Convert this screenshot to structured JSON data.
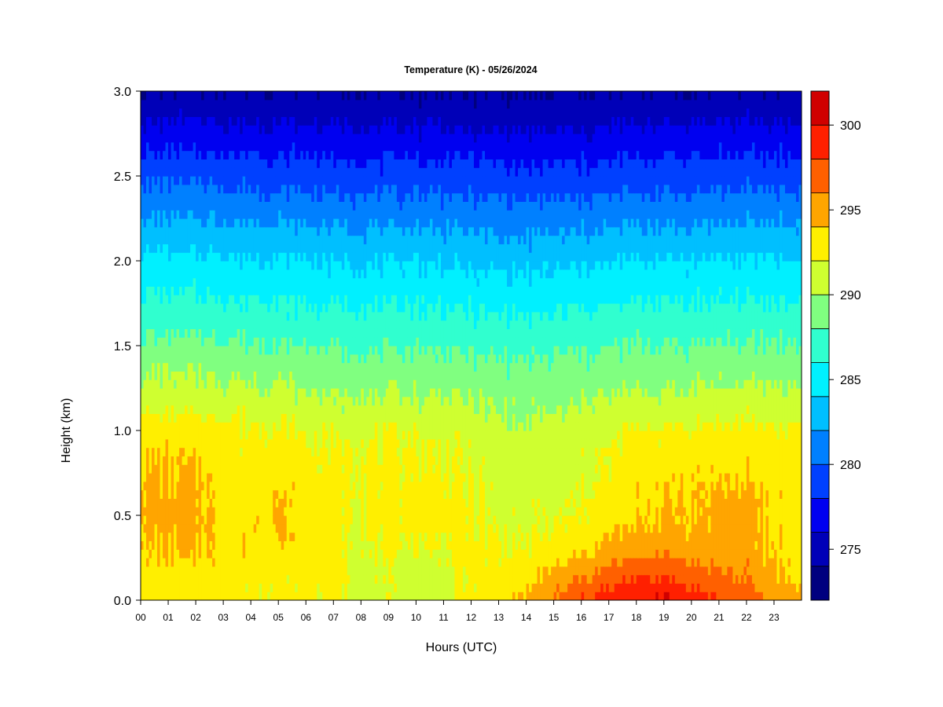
{
  "chart_data": {
    "type": "heatmap",
    "title": "Temperature (K) - 05/26/2024",
    "xlabel": "Hours (UTC)",
    "ylabel": "Height (km)",
    "x_unit": "hours UTC",
    "y_unit": "km",
    "xlim": [
      0,
      24
    ],
    "ylim": [
      0,
      3
    ],
    "x_ticks": [
      0,
      1,
      2,
      3,
      4,
      5,
      6,
      7,
      8,
      9,
      10,
      11,
      12,
      13,
      14,
      15,
      16,
      17,
      18,
      19,
      20,
      21,
      22,
      23
    ],
    "x_tick_labels": [
      "00",
      "01",
      "02",
      "03",
      "04",
      "05",
      "06",
      "07",
      "08",
      "09",
      "10",
      "11",
      "12",
      "13",
      "14",
      "15",
      "16",
      "17",
      "18",
      "19",
      "20",
      "21",
      "22",
      "23"
    ],
    "y_ticks": [
      0,
      0.5,
      1,
      1.5,
      2,
      2.5,
      3
    ],
    "y_tick_labels": [
      "0.0",
      "0.5",
      "1.0",
      "1.5",
      "2.0",
      "2.5",
      "3.0"
    ],
    "grid": false,
    "legend": "right colorbar",
    "colorbar": {
      "range": [
        272,
        302
      ],
      "levels": [
        272,
        274,
        276,
        278,
        280,
        282,
        284,
        286,
        288,
        290,
        292,
        294,
        296,
        298,
        300,
        302
      ],
      "colors": [
        "#00007F",
        "#0000B8",
        "#0000F0",
        "#0040FF",
        "#0080FF",
        "#00BFFF",
        "#00F0FF",
        "#30FFCF",
        "#80FF80",
        "#CFFF30",
        "#FFEF00",
        "#FFA500",
        "#FF6000",
        "#FF2000",
        "#D00000",
        "#800000"
      ],
      "tick_values": [
        275,
        280,
        285,
        290,
        295,
        300
      ],
      "tick_labels": [
        "275",
        "280",
        "285",
        "290",
        "295",
        "300"
      ]
    },
    "profiles": {
      "heights_km": [
        0,
        0.1,
        0.2,
        0.3,
        0.4,
        0.5,
        0.6,
        0.7,
        0.8,
        0.9,
        1.0,
        1.1,
        1.2,
        1.3,
        1.4,
        1.5,
        1.6,
        1.7,
        1.8,
        1.9,
        2.0,
        2.1,
        2.2,
        2.3,
        2.4,
        2.5,
        2.6,
        2.7,
        2.8,
        2.9,
        3.0
      ],
      "hours": [
        0,
        2,
        3.5,
        5,
        6,
        7,
        8,
        9,
        9.6,
        10.2,
        11,
        12,
        13,
        14,
        15,
        16,
        17,
        18,
        19,
        20,
        21,
        22,
        23,
        24
      ],
      "values_k": [
        [
          293.0,
          293.0,
          293.5,
          294.0,
          294.2,
          294.5,
          294.5,
          294.3,
          294.0,
          293.5,
          293.0,
          292.0,
          291.0,
          290.2,
          289.5,
          288.5,
          287.6,
          286.8,
          286.0,
          285.2,
          284.5,
          283.5,
          282.5,
          281.5,
          280.5,
          279.5,
          278.5,
          277.5,
          276.3,
          275.2,
          274.2
        ],
        [
          293.0,
          293.0,
          293.5,
          294.0,
          294.2,
          294.5,
          294.5,
          294.3,
          294.0,
          293.5,
          293.0,
          292.0,
          291.0,
          290.2,
          289.5,
          288.5,
          287.6,
          286.8,
          286.0,
          285.2,
          284.5,
          283.5,
          282.5,
          281.5,
          280.5,
          279.5,
          278.5,
          277.5,
          276.3,
          275.2,
          274.2
        ],
        [
          292.5,
          292.5,
          293.0,
          293.5,
          293.5,
          293.2,
          293.0,
          293.0,
          292.5,
          292.5,
          292.5,
          291.8,
          290.8,
          290.0,
          289.2,
          288.3,
          287.5,
          286.6,
          285.8,
          285.0,
          284.3,
          283.3,
          282.3,
          281.3,
          280.3,
          279.3,
          278.3,
          277.3,
          276.2,
          275.2,
          274.2
        ],
        [
          292.5,
          292.5,
          293.0,
          293.5,
          294.0,
          294.2,
          294.0,
          293.6,
          293.0,
          292.6,
          292.2,
          291.5,
          290.6,
          289.8,
          289.0,
          288.2,
          287.4,
          286.5,
          285.7,
          284.9,
          284.2,
          283.2,
          282.2,
          281.2,
          280.2,
          279.2,
          278.2,
          277.2,
          276.1,
          275.1,
          274.1
        ],
        [
          292.5,
          292.5,
          292.8,
          293.0,
          293.2,
          293.2,
          293.2,
          293.0,
          292.5,
          292.2,
          291.8,
          291.0,
          290.3,
          289.5,
          288.8,
          288.0,
          287.2,
          286.4,
          285.6,
          284.8,
          284.1,
          283.1,
          282.1,
          281.1,
          280.1,
          279.1,
          278.1,
          277.1,
          276.0,
          275.0,
          274.0
        ],
        [
          292.5,
          292.5,
          292.5,
          292.5,
          292.5,
          292.5,
          292.5,
          292.5,
          292.3,
          292.1,
          291.8,
          290.8,
          290.0,
          289.3,
          288.6,
          287.8,
          287.0,
          286.2,
          285.4,
          284.6,
          283.9,
          282.9,
          281.9,
          280.9,
          279.9,
          278.9,
          277.9,
          276.9,
          275.9,
          274.9,
          274.0
        ],
        [
          291.5,
          291.5,
          291.5,
          292.0,
          292.2,
          292.3,
          292.3,
          292.3,
          292.2,
          292.0,
          291.8,
          290.8,
          290.0,
          289.3,
          288.6,
          287.8,
          287.0,
          286.2,
          285.4,
          284.6,
          283.9,
          282.9,
          281.9,
          280.9,
          279.9,
          278.9,
          277.9,
          276.9,
          275.9,
          274.9,
          274.0
        ],
        [
          291.5,
          291.5,
          291.5,
          292.0,
          292.5,
          292.5,
          292.5,
          292.5,
          292.3,
          292.1,
          291.8,
          290.8,
          290.0,
          289.3,
          288.6,
          287.8,
          287.0,
          286.2,
          285.4,
          284.6,
          283.9,
          282.9,
          281.9,
          280.9,
          279.9,
          278.9,
          277.9,
          276.9,
          275.9,
          274.9,
          274.0
        ],
        [
          291.5,
          291.5,
          291.5,
          292.0,
          292.5,
          292.5,
          292.5,
          292.5,
          292.5,
          292.3,
          292.0,
          291.0,
          290.2,
          289.5,
          288.8,
          288.0,
          287.2,
          286.4,
          285.6,
          284.8,
          284.0,
          283.0,
          282.0,
          281.0,
          280.0,
          279.0,
          278.0,
          277.0,
          276.0,
          275.0,
          274.0
        ],
        [
          291.0,
          291.0,
          291.2,
          292.0,
          292.5,
          292.8,
          292.8,
          292.5,
          292.3,
          292.0,
          291.8,
          290.8,
          290.0,
          289.3,
          288.6,
          287.8,
          287.0,
          286.2,
          285.4,
          284.6,
          283.9,
          282.9,
          281.9,
          280.9,
          279.9,
          278.9,
          277.9,
          276.9,
          275.9,
          274.9,
          274.0
        ],
        [
          291.5,
          291.5,
          291.8,
          292.0,
          292.3,
          292.5,
          292.5,
          292.3,
          292.0,
          291.8,
          291.5,
          290.8,
          290.0,
          289.3,
          288.6,
          287.8,
          287.0,
          286.2,
          285.4,
          284.6,
          283.9,
          282.9,
          281.9,
          280.9,
          279.9,
          278.9,
          277.9,
          276.9,
          275.9,
          274.9,
          274.0
        ],
        [
          292.5,
          292.5,
          292.5,
          292.5,
          292.5,
          292.5,
          292.3,
          292.0,
          291.8,
          291.5,
          291.2,
          290.5,
          289.8,
          289.1,
          288.4,
          287.6,
          286.8,
          286.0,
          285.2,
          284.4,
          283.7,
          282.7,
          281.7,
          280.7,
          279.8,
          278.8,
          277.8,
          276.8,
          275.8,
          274.8,
          273.9
        ],
        [
          293.0,
          292.5,
          292.3,
          292.0,
          291.8,
          291.5,
          291.3,
          291.2,
          291.0,
          290.8,
          290.5,
          290.0,
          289.5,
          288.8,
          288.2,
          287.4,
          286.6,
          285.8,
          285.0,
          284.2,
          283.5,
          282.5,
          281.5,
          280.5,
          279.6,
          278.6,
          277.6,
          276.6,
          275.6,
          274.6,
          273.8
        ],
        [
          294.5,
          293.5,
          292.8,
          292.2,
          291.8,
          291.5,
          291.3,
          291.0,
          290.8,
          290.6,
          290.4,
          289.8,
          289.3,
          288.7,
          288.1,
          287.3,
          286.5,
          285.7,
          284.9,
          284.1,
          283.4,
          282.4,
          281.4,
          280.4,
          279.5,
          278.5,
          277.5,
          276.5,
          275.5,
          274.5,
          273.7
        ],
        [
          296.0,
          295.0,
          293.8,
          292.8,
          292.2,
          291.8,
          291.5,
          291.2,
          291.0,
          290.8,
          290.5,
          290.0,
          289.4,
          288.8,
          288.2,
          287.4,
          286.6,
          285.8,
          285.0,
          284.2,
          283.5,
          282.5,
          281.5,
          280.5,
          279.6,
          278.6,
          277.6,
          276.6,
          275.6,
          274.6,
          273.8
        ],
        [
          297.5,
          296.5,
          294.8,
          293.6,
          292.8,
          292.2,
          291.8,
          291.6,
          291.4,
          291.2,
          291.0,
          290.4,
          289.7,
          289.0,
          288.4,
          287.6,
          286.8,
          286.0,
          285.2,
          284.4,
          283.7,
          282.7,
          281.7,
          280.7,
          279.7,
          278.7,
          277.7,
          276.7,
          275.7,
          274.7,
          273.8
        ],
        [
          299.0,
          297.5,
          296.0,
          294.5,
          293.6,
          293.0,
          292.6,
          292.3,
          292.0,
          291.8,
          291.5,
          290.8,
          290.0,
          289.3,
          288.6,
          287.8,
          287.0,
          286.2,
          285.4,
          284.6,
          283.9,
          282.9,
          281.9,
          280.9,
          279.9,
          278.9,
          277.9,
          276.9,
          275.9,
          274.9,
          274.0
        ],
        [
          299.5,
          298.5,
          296.8,
          295.2,
          294.3,
          293.8,
          293.5,
          293.3,
          293.0,
          292.6,
          292.2,
          291.2,
          290.3,
          289.5,
          288.8,
          288.0,
          287.2,
          286.4,
          285.6,
          284.8,
          284.0,
          283.0,
          282.0,
          281.0,
          280.0,
          279.0,
          278.0,
          277.0,
          276.0,
          275.0,
          274.0
        ],
        [
          300.5,
          298.5,
          297.0,
          295.3,
          294.5,
          294.2,
          294.0,
          293.8,
          293.3,
          292.8,
          292.3,
          291.3,
          290.4,
          289.6,
          288.9,
          288.1,
          287.3,
          286.5,
          285.7,
          284.9,
          284.1,
          283.1,
          282.1,
          281.1,
          280.1,
          279.1,
          278.1,
          277.1,
          276.1,
          275.1,
          274.1
        ],
        [
          299.0,
          298.0,
          296.5,
          295.2,
          294.5,
          294.2,
          294.0,
          293.8,
          293.3,
          292.8,
          292.3,
          291.3,
          290.4,
          289.6,
          288.9,
          288.1,
          287.3,
          286.5,
          285.7,
          284.9,
          284.1,
          283.1,
          282.1,
          281.1,
          280.1,
          279.1,
          278.1,
          277.1,
          276.1,
          275.1,
          274.1
        ],
        [
          298.0,
          297.0,
          295.8,
          295.0,
          294.6,
          294.5,
          294.3,
          294.0,
          293.5,
          293.0,
          292.5,
          291.5,
          290.6,
          289.8,
          289.0,
          288.2,
          287.4,
          286.6,
          285.8,
          285.0,
          284.2,
          283.2,
          282.2,
          281.2,
          280.2,
          279.2,
          278.2,
          277.2,
          276.2,
          275.2,
          274.2
        ],
        [
          297.0,
          296.0,
          295.5,
          295.0,
          294.8,
          294.6,
          294.4,
          294.0,
          293.5,
          293.0,
          292.5,
          291.5,
          290.6,
          289.8,
          289.0,
          288.2,
          287.4,
          286.6,
          285.8,
          285.0,
          284.2,
          283.2,
          282.2,
          281.2,
          280.2,
          279.2,
          278.2,
          277.2,
          276.2,
          275.2,
          274.2
        ],
        [
          295.5,
          294.5,
          294.0,
          293.8,
          293.6,
          293.5,
          293.5,
          293.2,
          293.0,
          292.6,
          292.3,
          291.4,
          290.5,
          289.7,
          289.0,
          288.2,
          287.4,
          286.6,
          285.8,
          285.0,
          284.2,
          283.2,
          282.2,
          281.2,
          280.2,
          279.2,
          278.2,
          277.2,
          276.2,
          275.2,
          274.2
        ],
        [
          294.5,
          293.8,
          293.5,
          293.3,
          293.2,
          293.2,
          293.2,
          293.0,
          292.8,
          292.5,
          292.2,
          291.3,
          290.4,
          289.6,
          288.9,
          288.1,
          287.3,
          286.5,
          285.7,
          284.9,
          284.1,
          283.1,
          282.1,
          281.1,
          280.1,
          279.1,
          278.1,
          277.1,
          276.1,
          275.1,
          274.1
        ]
      ]
    }
  }
}
